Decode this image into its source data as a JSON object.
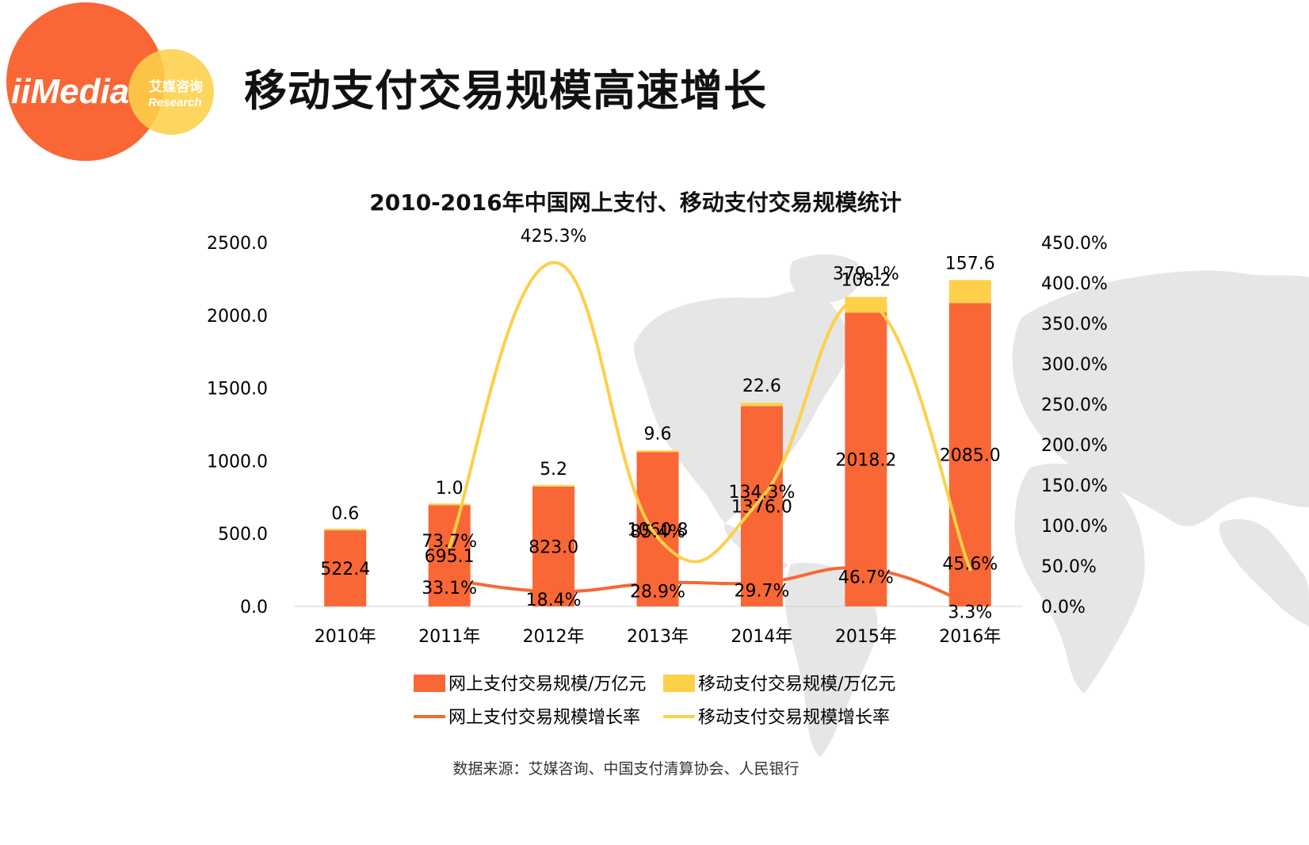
{
  "logo": {
    "brand": "iiMedia",
    "cn_name": "艾媒咨询",
    "en_name": "Research"
  },
  "page_title": "移动支付交易规模高速增长",
  "source_note": "数据来源：艾媒咨询、中国支付清算协会、人民银行",
  "colors": {
    "online_bar": "#f86735",
    "mobile_bar": "#fdd04a",
    "online_rate_line": "#f86735",
    "mobile_rate_line": "#fdd04a",
    "axis_text": "#000000",
    "map": "#e6e6e6",
    "logo_orange": "#f86735",
    "logo_yellow": "#fdd04a"
  },
  "chart_data": {
    "type": "bar",
    "title": "2010-2016年中国网上支付、移动支付交易规模统计",
    "categories": [
      "2010年",
      "2011年",
      "2012年",
      "2013年",
      "2014年",
      "2015年",
      "2016年"
    ],
    "left_axis": {
      "ylim": [
        0,
        2500
      ],
      "ticks": [
        "0.0",
        "500.0",
        "1000.0",
        "1500.0",
        "2000.0",
        "2500.0"
      ]
    },
    "right_axis": {
      "ylim": [
        0,
        450
      ],
      "ticks": [
        "0.0%",
        "50.0%",
        "100.0%",
        "150.0%",
        "200.0%",
        "250.0%",
        "300.0%",
        "350.0%",
        "400.0%",
        "450.0%"
      ]
    },
    "series": [
      {
        "name": "网上支付交易规模/万亿元",
        "kind": "bar",
        "stack": "scale",
        "axis": "left",
        "values": [
          522.4,
          695.1,
          823.0,
          1060.8,
          1376.0,
          2018.2,
          2085.0
        ],
        "labels": [
          "522.4",
          "695.1",
          "823.0",
          "1060.8",
          "1376.0",
          "2018.2",
          "2085.0"
        ]
      },
      {
        "name": "移动支付交易规模/万亿元",
        "kind": "bar",
        "stack": "scale",
        "axis": "left",
        "values": [
          0.6,
          1.0,
          5.2,
          9.6,
          22.6,
          108.2,
          157.6
        ],
        "labels": [
          "0.6",
          "1.0",
          "5.2",
          "9.6",
          "22.6",
          "108.2",
          "157.6"
        ]
      },
      {
        "name": "网上支付交易规模增长率",
        "kind": "line",
        "axis": "right",
        "values": [
          null,
          33.1,
          18.4,
          28.9,
          29.7,
          46.7,
          3.3
        ],
        "labels": [
          "",
          "33.1%",
          "18.4%",
          "28.9%",
          "29.7%",
          "46.7%",
          "3.3%"
        ]
      },
      {
        "name": "移动支付交易规模增长率",
        "kind": "line",
        "axis": "right",
        "values": [
          null,
          73.7,
          425.3,
          85.4,
          134.3,
          379.1,
          45.6
        ],
        "labels": [
          "",
          "73.7%",
          "425.3%",
          "85.4%",
          "134.3%",
          "379.1%",
          "45.6%"
        ]
      }
    ],
    "grid": false,
    "legend": "bottom"
  }
}
